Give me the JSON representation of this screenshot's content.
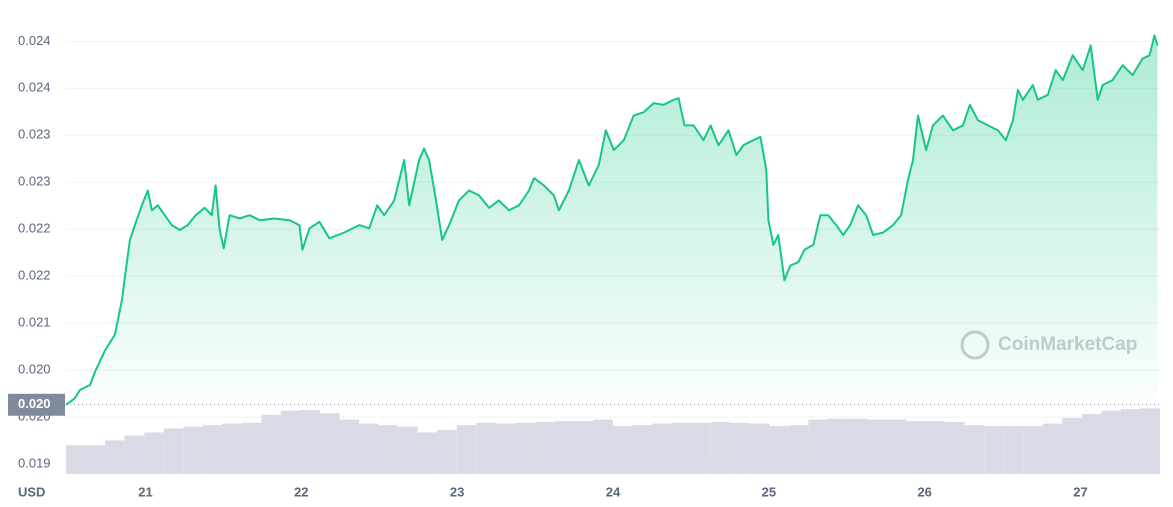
{
  "chart_data": {
    "type": "line",
    "color": "#16c784",
    "axis_unit": "USD",
    "watermark": "CoinMarketCap",
    "grid": true,
    "xlim": [
      20.49,
      27.51
    ],
    "xticks": [
      21,
      22,
      23,
      24,
      25,
      26,
      27
    ],
    "ylim": [
      0.01918,
      0.02481
    ],
    "yticks": [
      {
        "value": 0.0193,
        "label": "0.019"
      },
      {
        "value": 0.01987,
        "label": "0.020"
      },
      {
        "value": 0.02044,
        "label": "0.020"
      },
      {
        "value": 0.02101,
        "label": "0.021"
      },
      {
        "value": 0.02158,
        "label": "0.022"
      },
      {
        "value": 0.02215,
        "label": "0.022"
      },
      {
        "value": 0.02272,
        "label": "0.023"
      },
      {
        "value": 0.02329,
        "label": "0.023"
      },
      {
        "value": 0.02386,
        "label": "0.024"
      },
      {
        "value": 0.02443,
        "label": "0.024"
      }
    ],
    "reference_price": {
      "value": 0.02002,
      "label": "0.020"
    },
    "x": [
      20.49,
      20.548,
      20.58,
      20.644,
      20.676,
      20.74,
      20.804,
      20.849,
      20.874,
      20.9,
      20.932,
      20.977,
      21.015,
      21.041,
      21.079,
      21.124,
      21.169,
      21.22,
      21.271,
      21.322,
      21.38,
      21.425,
      21.45,
      21.476,
      21.502,
      21.54,
      21.604,
      21.668,
      21.732,
      21.828,
      21.924,
      21.988,
      22.007,
      22.052,
      22.116,
      22.18,
      22.276,
      22.372,
      22.436,
      22.487,
      22.532,
      22.596,
      22.66,
      22.692,
      22.756,
      22.788,
      22.82,
      22.859,
      22.904,
      22.948,
      23.012,
      23.076,
      23.14,
      23.204,
      23.268,
      23.332,
      23.397,
      23.461,
      23.493,
      23.557,
      23.621,
      23.653,
      23.717,
      23.781,
      23.845,
      23.909,
      23.954,
      24.005,
      24.069,
      24.133,
      24.197,
      24.261,
      24.325,
      24.389,
      24.421,
      24.459,
      24.517,
      24.581,
      24.626,
      24.677,
      24.741,
      24.792,
      24.837,
      24.901,
      24.946,
      24.984,
      24.997,
      25.029,
      25.061,
      25.1,
      25.138,
      25.189,
      25.228,
      25.285,
      25.33,
      25.381,
      25.432,
      25.477,
      25.522,
      25.573,
      25.624,
      25.669,
      25.733,
      25.797,
      25.849,
      25.893,
      25.925,
      25.957,
      26.009,
      26.053,
      26.117,
      26.181,
      26.245,
      26.29,
      26.342,
      26.406,
      26.47,
      26.521,
      26.566,
      26.598,
      26.63,
      26.694,
      26.726,
      26.79,
      26.841,
      26.886,
      26.95,
      27.014,
      27.065,
      27.11,
      27.142,
      27.206,
      27.27,
      27.334,
      27.398,
      27.443,
      27.475,
      27.494
    ],
    "values": [
      0.02002,
      0.0201,
      0.0202,
      0.02026,
      0.02042,
      0.02068,
      0.02087,
      0.02129,
      0.02165,
      0.02202,
      0.0222,
      0.02244,
      0.02262,
      0.02238,
      0.02244,
      0.02232,
      0.0222,
      0.02214,
      0.0222,
      0.02232,
      0.02241,
      0.02232,
      0.02268,
      0.02214,
      0.02192,
      0.02232,
      0.02228,
      0.02232,
      0.02226,
      0.02228,
      0.02226,
      0.0222,
      0.0219,
      0.02216,
      0.02224,
      0.02204,
      0.02211,
      0.0222,
      0.02216,
      0.02244,
      0.02232,
      0.0225,
      0.02299,
      0.02244,
      0.02299,
      0.02313,
      0.02299,
      0.02256,
      0.02202,
      0.0222,
      0.0225,
      0.02262,
      0.02256,
      0.02241,
      0.0225,
      0.02238,
      0.02244,
      0.02262,
      0.02277,
      0.02268,
      0.02256,
      0.02238,
      0.02262,
      0.02299,
      0.02268,
      0.02293,
      0.02335,
      0.02311,
      0.02323,
      0.02353,
      0.02357,
      0.02368,
      0.02366,
      0.02372,
      0.02374,
      0.02341,
      0.02341,
      0.02323,
      0.02341,
      0.02317,
      0.02335,
      0.02305,
      0.02317,
      0.02323,
      0.02327,
      0.02287,
      0.02226,
      0.02196,
      0.02208,
      0.02153,
      0.02171,
      0.02175,
      0.0219,
      0.02196,
      0.02232,
      0.02232,
      0.0222,
      0.02208,
      0.0222,
      0.02244,
      0.02232,
      0.02208,
      0.02211,
      0.0222,
      0.02232,
      0.02275,
      0.02299,
      0.02353,
      0.02311,
      0.02341,
      0.02353,
      0.02335,
      0.02341,
      0.02366,
      0.02347,
      0.02341,
      0.02335,
      0.02323,
      0.02347,
      0.02384,
      0.02372,
      0.0239,
      0.02372,
      0.02378,
      0.02408,
      0.02396,
      0.02426,
      0.02408,
      0.02438,
      0.02372,
      0.0239,
      0.02396,
      0.02414,
      0.02402,
      0.02422,
      0.02426,
      0.0245,
      0.02438
    ],
    "y2lim": [
      0,
      100
    ],
    "volume": {
      "axis": "y2",
      "color": "#d8dbe6",
      "values": [
        36,
        36,
        42,
        48,
        52,
        57,
        59,
        61,
        63,
        64,
        74,
        79,
        80,
        76,
        68,
        63,
        61,
        59,
        52,
        55,
        61,
        64,
        63,
        64,
        65,
        66,
        66,
        68,
        60,
        61,
        63,
        64,
        64,
        65,
        64,
        63,
        60,
        61,
        68,
        69,
        69,
        68,
        68,
        66,
        66,
        65,
        61,
        60,
        60,
        60,
        63,
        70,
        75,
        79,
        81,
        82
      ]
    }
  }
}
